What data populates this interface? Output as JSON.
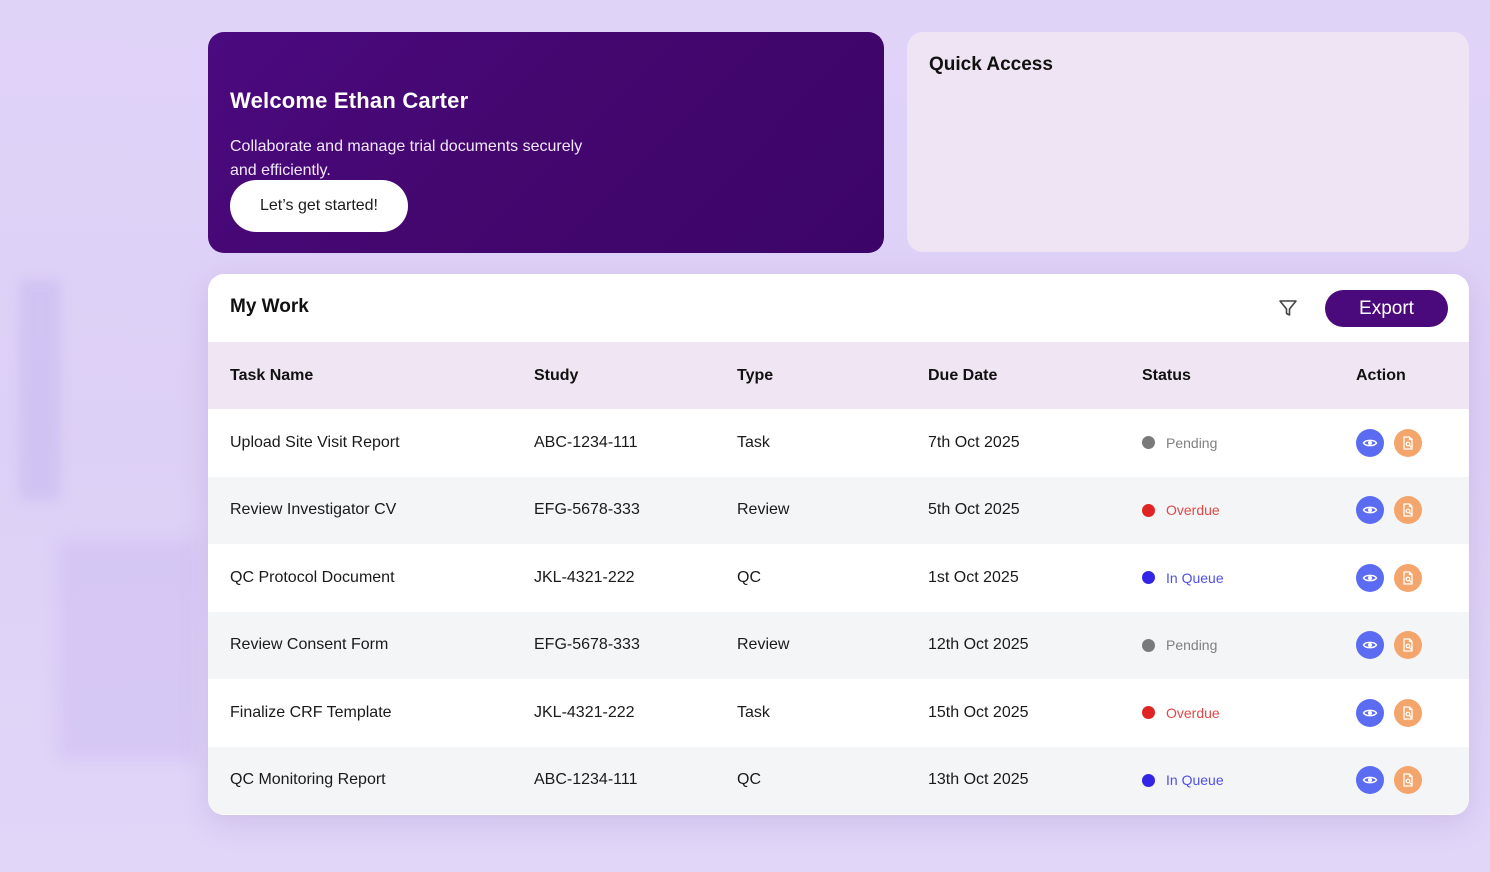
{
  "welcome": {
    "title": "Welcome Ethan Carter",
    "subtitle": "Collaborate and manage trial documents securely and efficiently.",
    "cta_label": "Let’s get started!"
  },
  "quick_access": {
    "title": "Quick Access"
  },
  "my_work": {
    "title": "My Work",
    "filter_icon": "filter-icon",
    "export_label": "Export",
    "columns": [
      "Task Name",
      "Study",
      "Type",
      "Due Date",
      "Status",
      "Action"
    ],
    "rows": [
      {
        "task": "Upload Site Visit Report",
        "study": "ABC-1234-111",
        "type": "Task",
        "due": "7th Oct 2025",
        "status": "Pending",
        "status_color": "#7a7a7a"
      },
      {
        "task": "Review Investigator CV",
        "study": "EFG-5678-333",
        "type": "Review",
        "due": "5th Oct 2025",
        "status": "Overdue",
        "status_color": "#e02424"
      },
      {
        "task": "QC Protocol Document",
        "study": "JKL-4321-222",
        "type": "QC",
        "due": "1st Oct 2025",
        "status": "In Queue",
        "status_color": "#3325e6"
      },
      {
        "task": "Review Consent Form",
        "study": "EFG-5678-333",
        "type": "Review",
        "due": "12th Oct 2025",
        "status": "Pending",
        "status_color": "#7a7a7a"
      },
      {
        "task": "Finalize CRF Template",
        "study": "JKL-4321-222",
        "type": "Task",
        "due": "15th Oct 2025",
        "status": "Overdue",
        "status_color": "#e02424"
      },
      {
        "task": "QC Monitoring Report",
        "study": "ABC-1234-111",
        "type": "QC",
        "due": "13th Oct 2025",
        "status": "In Queue",
        "status_color": "#3325e6"
      }
    ],
    "status_text_colors": {
      "Pending": "#808080",
      "Overdue": "#e04848",
      "In Queue": "#5150e6"
    },
    "action_icons": [
      "eye-icon",
      "document-search-icon"
    ],
    "action_colors": {
      "view": "#5b6cf3",
      "doc": "#f4a56c"
    }
  },
  "colors": {
    "accent": "#4a0a7c",
    "background": "#e0d3f8"
  }
}
